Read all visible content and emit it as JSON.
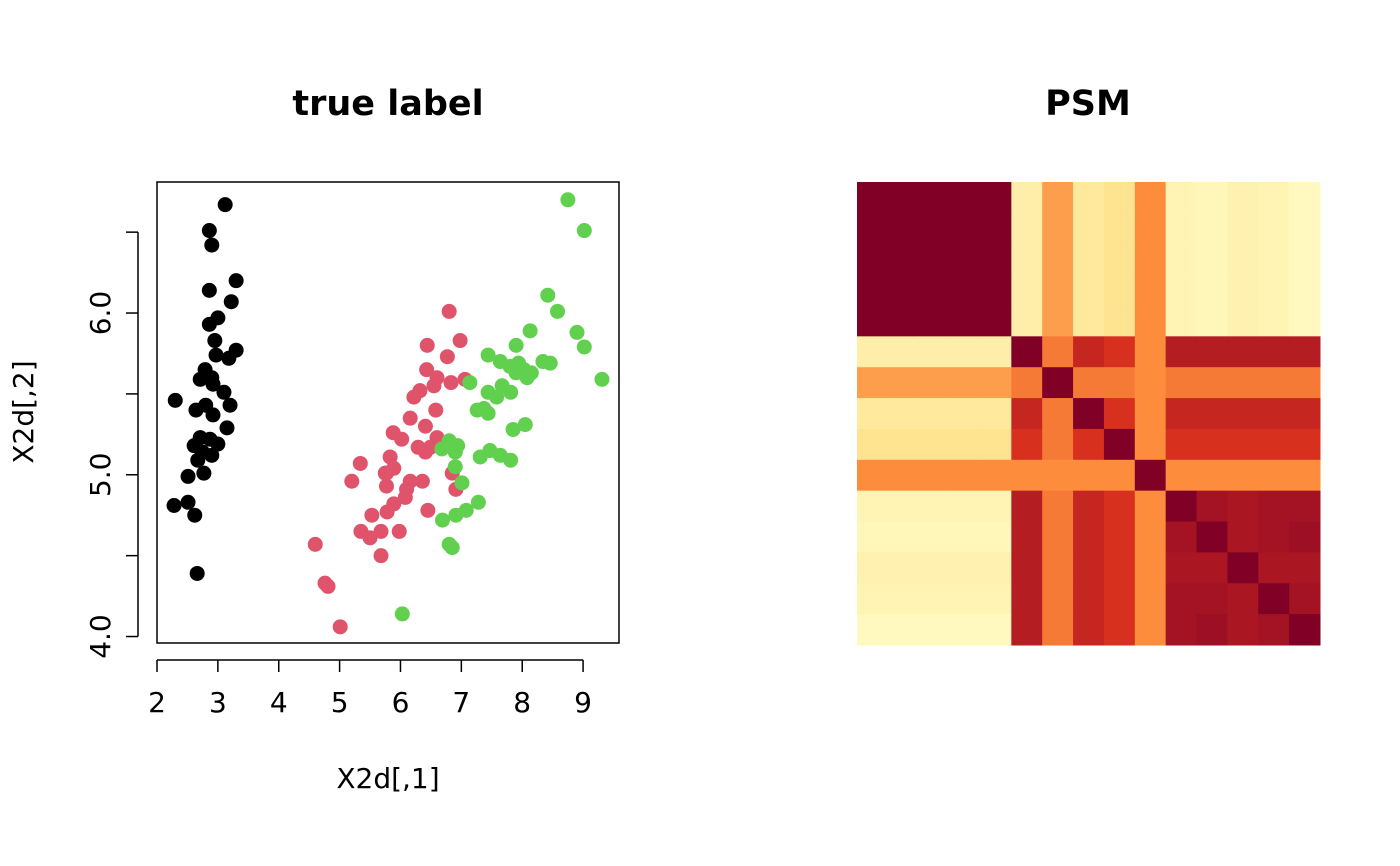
{
  "chart_data": [
    {
      "type": "scatter",
      "title": "true label",
      "xlabel": "X2d[,1]",
      "ylabel": "X2d[,2]",
      "xlim": [
        2,
        9.59
      ],
      "ylim": [
        3.96,
        6.81
      ],
      "xticks": [
        2,
        3,
        4,
        5,
        6,
        7,
        8,
        9
      ],
      "yticks": [
        {
          "value": 4,
          "label": "4.0"
        },
        {
          "value": 5,
          "label": "5.0"
        },
        {
          "value": 6,
          "label": "6.0"
        }
      ],
      "yminorticks": [
        4.5,
        5.5,
        6.5
      ],
      "series": [
        {
          "color": "#000000",
          "x": [
            3.12,
            2.86,
            2.9,
            3.3,
            2.86,
            3.22,
            3.0,
            2.86,
            2.95,
            3.3,
            2.97,
            3.18,
            2.79,
            2.9,
            2.71,
            3.1,
            2.92,
            2.3,
            2.8,
            3.2,
            2.92,
            2.64,
            3.15,
            2.71,
            2.87,
            3.0,
            2.61,
            2.75,
            2.9,
            2.67,
            2.77,
            2.51,
            2.51,
            2.28,
            2.62,
            2.66
          ],
          "y": [
            6.67,
            6.51,
            6.42,
            6.2,
            6.14,
            6.07,
            5.97,
            5.93,
            5.83,
            5.77,
            5.74,
            5.72,
            5.65,
            5.6,
            5.59,
            5.51,
            5.56,
            5.46,
            5.43,
            5.43,
            5.37,
            5.4,
            5.29,
            5.23,
            5.22,
            5.19,
            5.18,
            5.14,
            5.12,
            5.09,
            5.01,
            4.99,
            4.83,
            4.81,
            4.75,
            4.39
          ]
        },
        {
          "color": "#DF536B",
          "x": [
            6.8,
            6.98,
            6.44,
            6.77,
            6.43,
            7.06,
            6.6,
            6.83,
            6.55,
            6.32,
            6.22,
            6.58,
            6.16,
            6.41,
            6.6,
            5.88,
            6.02,
            6.29,
            6.49,
            6.41,
            5.83,
            5.34,
            6.85,
            5.75,
            5.89,
            5.77,
            6.36,
            5.2,
            6.16,
            5.77,
            6.1,
            6.91,
            5.89,
            6.08,
            5.78,
            6.45,
            5.53,
            5.35,
            5.68,
            5.5,
            5.98,
            4.6,
            5.68,
            4.76,
            4.81,
            5.01
          ],
          "y": [
            6.01,
            5.83,
            5.8,
            5.73,
            5.65,
            5.59,
            5.6,
            5.57,
            5.55,
            5.52,
            5.48,
            5.4,
            5.35,
            5.3,
            5.23,
            5.26,
            5.22,
            5.17,
            5.17,
            5.14,
            5.11,
            5.07,
            5.01,
            5.01,
            5.04,
            5.01,
            4.96,
            4.96,
            4.96,
            4.93,
            4.91,
            4.91,
            4.82,
            4.86,
            4.77,
            4.78,
            4.75,
            4.65,
            4.65,
            4.61,
            4.65,
            4.57,
            4.5,
            4.33,
            4.31,
            4.06
          ]
        },
        {
          "color": "#61D04F",
          "x": [
            8.75,
            9.02,
            8.42,
            8.58,
            8.13,
            8.9,
            9.02,
            7.9,
            7.44,
            7.64,
            8.34,
            8.46,
            7.94,
            7.8,
            8.03,
            8.15,
            7.9,
            8.08,
            9.31,
            7.14,
            7.67,
            7.44,
            7.81,
            7.58,
            7.37,
            7.26,
            7.44,
            8.05,
            7.85,
            6.8,
            6.94,
            6.68,
            7.47,
            6.9,
            7.64,
            7.31,
            7.81,
            6.9,
            7.01,
            7.28,
            7.08,
            6.91,
            6.69,
            6.8,
            6.85,
            6.03
          ],
          "y": [
            6.7,
            6.51,
            6.11,
            6.01,
            5.89,
            5.88,
            5.79,
            5.8,
            5.74,
            5.7,
            5.7,
            5.69,
            5.69,
            5.67,
            5.65,
            5.63,
            5.63,
            5.6,
            5.59,
            5.57,
            5.55,
            5.51,
            5.51,
            5.48,
            5.41,
            5.4,
            5.38,
            5.31,
            5.28,
            5.21,
            5.18,
            5.16,
            5.15,
            5.14,
            5.12,
            5.11,
            5.09,
            5.05,
            4.95,
            4.83,
            4.78,
            4.75,
            4.72,
            4.57,
            4.55,
            4.14
          ]
        }
      ]
    },
    {
      "type": "heatmap",
      "title": "PSM",
      "zlim": [
        0,
        1
      ],
      "colormap": [
        "#ffffcc",
        "#fee391",
        "#fd8d3c",
        "#d7301f",
        "#800026"
      ],
      "values": [
        [
          1,
          1,
          1,
          1,
          1,
          0.15,
          0.45,
          0.2,
          0.25,
          0.5,
          0.1,
          0.08,
          0.12,
          0.1,
          0.05
        ],
        [
          1,
          1,
          1,
          1,
          1,
          0.15,
          0.45,
          0.2,
          0.25,
          0.5,
          0.1,
          0.08,
          0.12,
          0.1,
          0.05
        ],
        [
          1,
          1,
          1,
          1,
          1,
          0.15,
          0.45,
          0.2,
          0.25,
          0.5,
          0.1,
          0.08,
          0.12,
          0.1,
          0.05
        ],
        [
          1,
          1,
          1,
          1,
          1,
          0.15,
          0.45,
          0.2,
          0.25,
          0.5,
          0.1,
          0.08,
          0.12,
          0.1,
          0.05
        ],
        [
          1,
          1,
          1,
          1,
          1,
          0.15,
          0.45,
          0.2,
          0.25,
          0.5,
          0.1,
          0.08,
          0.12,
          0.1,
          0.05
        ],
        [
          0.15,
          0.15,
          0.15,
          0.15,
          0.15,
          1,
          0.55,
          0.8,
          0.75,
          0.5,
          0.85,
          0.85,
          0.85,
          0.85,
          0.85
        ],
        [
          0.45,
          0.45,
          0.45,
          0.45,
          0.45,
          0.55,
          1,
          0.55,
          0.55,
          0.5,
          0.55,
          0.55,
          0.55,
          0.55,
          0.55
        ],
        [
          0.2,
          0.2,
          0.2,
          0.2,
          0.2,
          0.8,
          0.55,
          1,
          0.75,
          0.5,
          0.8,
          0.8,
          0.8,
          0.8,
          0.8
        ],
        [
          0.25,
          0.25,
          0.25,
          0.25,
          0.25,
          0.75,
          0.55,
          0.75,
          1,
          0.5,
          0.75,
          0.75,
          0.75,
          0.75,
          0.75
        ],
        [
          0.5,
          0.5,
          0.5,
          0.5,
          0.5,
          0.5,
          0.5,
          0.5,
          0.5,
          1,
          0.5,
          0.5,
          0.5,
          0.5,
          0.5
        ],
        [
          0.1,
          0.1,
          0.1,
          0.1,
          0.1,
          0.85,
          0.55,
          0.8,
          0.75,
          0.5,
          1,
          0.9,
          0.88,
          0.9,
          0.9
        ],
        [
          0.08,
          0.08,
          0.08,
          0.08,
          0.08,
          0.85,
          0.55,
          0.8,
          0.75,
          0.5,
          0.9,
          1,
          0.88,
          0.9,
          0.92
        ],
        [
          0.12,
          0.12,
          0.12,
          0.12,
          0.12,
          0.85,
          0.55,
          0.8,
          0.75,
          0.5,
          0.88,
          0.88,
          1,
          0.88,
          0.88
        ],
        [
          0.1,
          0.1,
          0.1,
          0.1,
          0.1,
          0.85,
          0.55,
          0.8,
          0.75,
          0.5,
          0.9,
          0.9,
          0.88,
          1,
          0.9
        ],
        [
          0.05,
          0.05,
          0.05,
          0.05,
          0.05,
          0.85,
          0.55,
          0.8,
          0.75,
          0.5,
          0.9,
          0.92,
          0.88,
          0.9,
          1
        ]
      ]
    }
  ]
}
